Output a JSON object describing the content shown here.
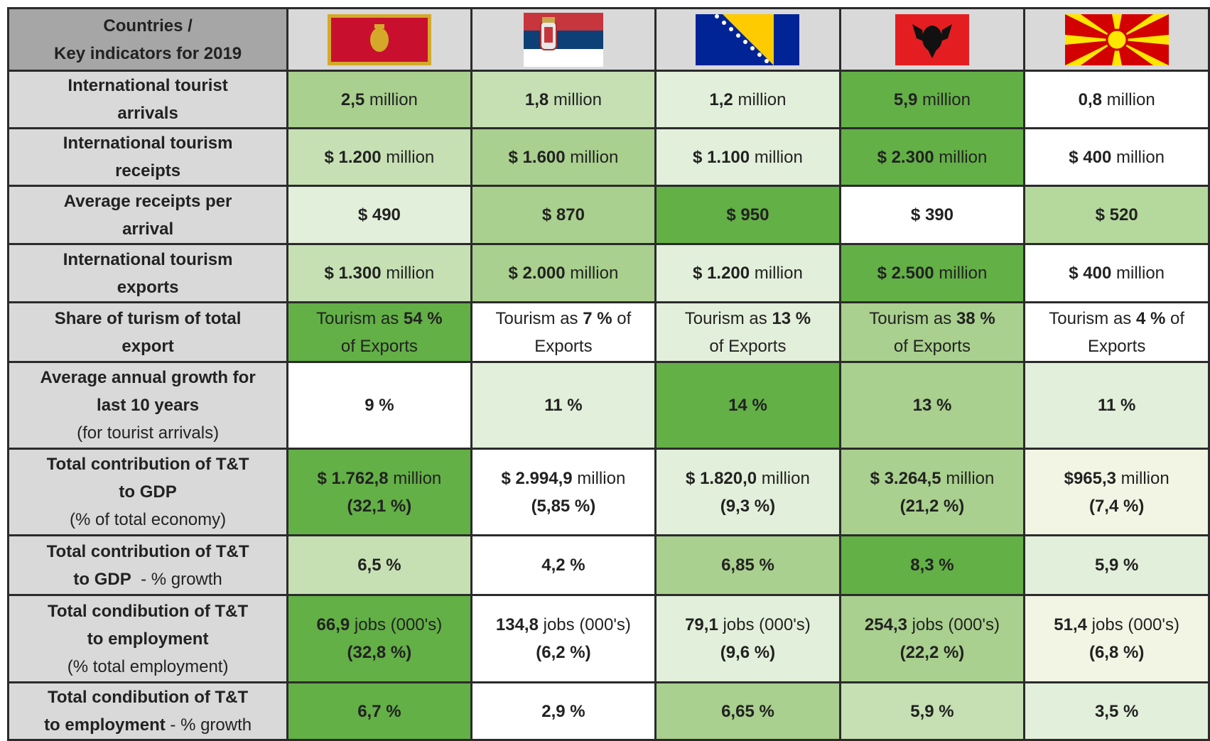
{
  "header": {
    "corner": [
      [
        {
          "text": "Countries /",
          "bold": true
        }
      ],
      [
        {
          "text": "Key indicators for 2019",
          "bold": true
        }
      ]
    ]
  },
  "rows": [
    {
      "label": [
        [
          {
            "text": "International tourist",
            "bold": true
          }
        ],
        [
          {
            "text": "arrivals",
            "bold": true
          }
        ]
      ],
      "cells": [
        {
          "fill": "#a9d08e",
          "lines": [
            [
              {
                "text": "2,5",
                "bold": true
              },
              {
                "text": " million",
                "bold": false
              }
            ]
          ]
        },
        {
          "fill": "#c6e0b4",
          "lines": [
            [
              {
                "text": "1,8",
                "bold": true
              },
              {
                "text": " million",
                "bold": false
              }
            ]
          ]
        },
        {
          "fill": "#e2efda",
          "lines": [
            [
              {
                "text": "1,2",
                "bold": true
              },
              {
                "text": " million",
                "bold": false
              }
            ]
          ]
        },
        {
          "fill": "#63b046",
          "lines": [
            [
              {
                "text": "5,9",
                "bold": true
              },
              {
                "text": " million",
                "bold": false
              }
            ]
          ]
        },
        {
          "fill": "#ffffff",
          "lines": [
            [
              {
                "text": "0,8",
                "bold": true
              },
              {
                "text": " million",
                "bold": false
              }
            ]
          ]
        }
      ]
    },
    {
      "label": [
        [
          {
            "text": "International tourism",
            "bold": true
          }
        ],
        [
          {
            "text": "receipts",
            "bold": true
          }
        ]
      ],
      "cells": [
        {
          "fill": "#c6e0b4",
          "lines": [
            [
              {
                "text": "$ 1.200",
                "bold": true
              },
              {
                "text": " million",
                "bold": false
              }
            ]
          ]
        },
        {
          "fill": "#a9d08e",
          "lines": [
            [
              {
                "text": "$ 1.600",
                "bold": true
              },
              {
                "text": " million",
                "bold": false
              }
            ]
          ]
        },
        {
          "fill": "#e2efda",
          "lines": [
            [
              {
                "text": "$ 1.100",
                "bold": true
              },
              {
                "text": " million",
                "bold": false
              }
            ]
          ]
        },
        {
          "fill": "#63b046",
          "lines": [
            [
              {
                "text": "$ 2.300",
                "bold": true
              },
              {
                "text": " million",
                "bold": false
              }
            ]
          ]
        },
        {
          "fill": "#ffffff",
          "lines": [
            [
              {
                "text": "$ 400",
                "bold": true
              },
              {
                "text": " million",
                "bold": false
              }
            ]
          ]
        }
      ]
    },
    {
      "label": [
        [
          {
            "text": "Average receipts per",
            "bold": true
          }
        ],
        [
          {
            "text": "arrival",
            "bold": true
          }
        ]
      ],
      "cells": [
        {
          "fill": "#e2efda",
          "lines": [
            [
              {
                "text": "$ 490",
                "bold": true
              }
            ]
          ]
        },
        {
          "fill": "#a9d08e",
          "lines": [
            [
              {
                "text": "$ 870",
                "bold": true
              }
            ]
          ]
        },
        {
          "fill": "#63b046",
          "lines": [
            [
              {
                "text": "$ 950",
                "bold": true
              }
            ]
          ]
        },
        {
          "fill": "#ffffff",
          "lines": [
            [
              {
                "text": "$ 390",
                "bold": true
              }
            ]
          ]
        },
        {
          "fill": "#b5d99c",
          "lines": [
            [
              {
                "text": "$ 520",
                "bold": true
              }
            ]
          ]
        }
      ]
    },
    {
      "label": [
        [
          {
            "text": "International tourism",
            "bold": true
          }
        ],
        [
          {
            "text": "exports",
            "bold": true
          }
        ]
      ],
      "cells": [
        {
          "fill": "#c6e0b4",
          "lines": [
            [
              {
                "text": "$ 1.300",
                "bold": true
              },
              {
                "text": " million",
                "bold": false
              }
            ]
          ]
        },
        {
          "fill": "#a9d08e",
          "lines": [
            [
              {
                "text": "$ 2.000",
                "bold": true
              },
              {
                "text": " million",
                "bold": false
              }
            ]
          ]
        },
        {
          "fill": "#e2efda",
          "lines": [
            [
              {
                "text": "$ 1.200",
                "bold": true
              },
              {
                "text": " million",
                "bold": false
              }
            ]
          ]
        },
        {
          "fill": "#63b046",
          "lines": [
            [
              {
                "text": "$ 2.500",
                "bold": true
              },
              {
                "text": " million",
                "bold": false
              }
            ]
          ]
        },
        {
          "fill": "#ffffff",
          "lines": [
            [
              {
                "text": "$ 400",
                "bold": true
              },
              {
                "text": " million",
                "bold": false
              }
            ]
          ]
        }
      ]
    },
    {
      "label": [
        [
          {
            "text": "Share of turism of total",
            "bold": true
          }
        ],
        [
          {
            "text": "export",
            "bold": true
          }
        ]
      ],
      "cells": [
        {
          "fill": "#63b046",
          "lines": [
            [
              {
                "text": "Tourism as ",
                "bold": false
              },
              {
                "text": "54 %",
                "bold": true
              }
            ],
            [
              {
                "text": "of Exports",
                "bold": false
              }
            ]
          ]
        },
        {
          "fill": "#ffffff",
          "lines": [
            [
              {
                "text": "Tourism as ",
                "bold": false
              },
              {
                "text": "7 %",
                "bold": true
              },
              {
                "text": " of",
                "bold": false
              }
            ],
            [
              {
                "text": "Exports",
                "bold": false
              }
            ]
          ]
        },
        {
          "fill": "#e2efda",
          "lines": [
            [
              {
                "text": "Tourism as ",
                "bold": false
              },
              {
                "text": "13 %",
                "bold": true
              }
            ],
            [
              {
                "text": "of Exports",
                "bold": false
              }
            ]
          ]
        },
        {
          "fill": "#a9d08e",
          "lines": [
            [
              {
                "text": "Tourism as ",
                "bold": false
              },
              {
                "text": "38 %",
                "bold": true
              }
            ],
            [
              {
                "text": "of Exports",
                "bold": false
              }
            ]
          ]
        },
        {
          "fill": "#ffffff",
          "lines": [
            [
              {
                "text": "Tourism as ",
                "bold": false
              },
              {
                "text": "4 %",
                "bold": true
              },
              {
                "text": " of",
                "bold": false
              }
            ],
            [
              {
                "text": "Exports",
                "bold": false
              }
            ]
          ]
        }
      ]
    },
    {
      "label": [
        [
          {
            "text": "Average annual growth for",
            "bold": true
          }
        ],
        [
          {
            "text": "last 10 years",
            "bold": true
          }
        ],
        [
          {
            "text": "(for tourist arrivals)",
            "bold": false
          }
        ]
      ],
      "cells": [
        {
          "fill": "#ffffff",
          "lines": [
            [
              {
                "text": "9 %",
                "bold": true
              }
            ]
          ]
        },
        {
          "fill": "#e2efda",
          "lines": [
            [
              {
                "text": "11 %",
                "bold": true
              }
            ]
          ]
        },
        {
          "fill": "#63b046",
          "lines": [
            [
              {
                "text": "14 %",
                "bold": true
              }
            ]
          ]
        },
        {
          "fill": "#a9d08e",
          "lines": [
            [
              {
                "text": "13 %",
                "bold": true
              }
            ]
          ]
        },
        {
          "fill": "#e2efda",
          "lines": [
            [
              {
                "text": "11 %",
                "bold": true
              }
            ]
          ]
        }
      ]
    },
    {
      "label": [
        [
          {
            "text": "Total contribution of T&T",
            "bold": true
          }
        ],
        [
          {
            "text": "to GDP",
            "bold": true
          }
        ],
        [
          {
            "text": "(% of total economy)",
            "bold": false
          }
        ]
      ],
      "cells": [
        {
          "fill": "#63b046",
          "lines": [
            [
              {
                "text": "$ 1.762,8",
                "bold": true
              },
              {
                "text": " million",
                "bold": false
              }
            ],
            [
              {
                "text": "(32,1 %)",
                "bold": true
              }
            ]
          ]
        },
        {
          "fill": "#ffffff",
          "lines": [
            [
              {
                "text": "$ 2.994,9",
                "bold": true
              },
              {
                "text": " million",
                "bold": false
              }
            ],
            [
              {
                "text": "(5,85 %)",
                "bold": true
              }
            ]
          ]
        },
        {
          "fill": "#e2efda",
          "lines": [
            [
              {
                "text": "$ 1.820,0",
                "bold": true
              },
              {
                "text": " million",
                "bold": false
              }
            ],
            [
              {
                "text": "(9,3 %)",
                "bold": true
              }
            ]
          ]
        },
        {
          "fill": "#a9d08e",
          "lines": [
            [
              {
                "text": "$ 3.264,5",
                "bold": true
              },
              {
                "text": " million",
                "bold": false
              }
            ],
            [
              {
                "text": "(21,2 %)",
                "bold": true
              }
            ]
          ]
        },
        {
          "fill": "#f2f5e4",
          "lines": [
            [
              {
                "text": "$965,3",
                "bold": true
              },
              {
                "text": " million",
                "bold": false
              }
            ],
            [
              {
                "text": "(7,4 %)",
                "bold": true
              }
            ]
          ]
        }
      ]
    },
    {
      "label": [
        [
          {
            "text": "Total contribution of T&T",
            "bold": true
          }
        ],
        [
          {
            "text": "to GDP",
            "bold": true
          },
          {
            "text": "  - % growth",
            "bold": false
          }
        ]
      ],
      "cells": [
        {
          "fill": "#c6e0b4",
          "lines": [
            [
              {
                "text": "6,5 %",
                "bold": true
              }
            ]
          ]
        },
        {
          "fill": "#ffffff",
          "lines": [
            [
              {
                "text": "4,2 %",
                "bold": true
              }
            ]
          ]
        },
        {
          "fill": "#a9d08e",
          "lines": [
            [
              {
                "text": "6,85 %",
                "bold": true
              }
            ]
          ]
        },
        {
          "fill": "#63b046",
          "lines": [
            [
              {
                "text": "8,3 %",
                "bold": true
              }
            ]
          ]
        },
        {
          "fill": "#e2efda",
          "lines": [
            [
              {
                "text": "5,9 %",
                "bold": true
              }
            ]
          ]
        }
      ]
    },
    {
      "label": [
        [
          {
            "text": "Total condibution of T&T",
            "bold": true
          }
        ],
        [
          {
            "text": "to employment",
            "bold": true
          }
        ],
        [
          {
            "text": "(% total employment)",
            "bold": false
          }
        ]
      ],
      "cells": [
        {
          "fill": "#63b046",
          "lines": [
            [
              {
                "text": "66,9",
                "bold": true
              },
              {
                "text": " jobs (000's)",
                "bold": false
              }
            ],
            [
              {
                "text": "(32,8 %)",
                "bold": true
              }
            ]
          ]
        },
        {
          "fill": "#ffffff",
          "lines": [
            [
              {
                "text": "134,8",
                "bold": true
              },
              {
                "text": " jobs (000's)",
                "bold": false
              }
            ],
            [
              {
                "text": "(6,2 %)",
                "bold": true
              }
            ]
          ]
        },
        {
          "fill": "#e2efda",
          "lines": [
            [
              {
                "text": "79,1",
                "bold": true
              },
              {
                "text": " jobs (000's)",
                "bold": false
              }
            ],
            [
              {
                "text": "(9,6 %)",
                "bold": true
              }
            ]
          ]
        },
        {
          "fill": "#a9d08e",
          "lines": [
            [
              {
                "text": "254,3",
                "bold": true
              },
              {
                "text": " jobs (000's)",
                "bold": false
              }
            ],
            [
              {
                "text": "(22,2 %)",
                "bold": true
              }
            ]
          ]
        },
        {
          "fill": "#f2f5e4",
          "lines": [
            [
              {
                "text": "51,4",
                "bold": true
              },
              {
                "text": " jobs (000's)",
                "bold": false
              }
            ],
            [
              {
                "text": "(6,8 %)",
                "bold": true
              }
            ]
          ]
        }
      ]
    },
    {
      "label": [
        [
          {
            "text": "Total condibution of T&T",
            "bold": true
          }
        ],
        [
          {
            "text": "to employment",
            "bold": true
          },
          {
            "text": " - % growth",
            "bold": false
          }
        ]
      ],
      "cells": [
        {
          "fill": "#63b046",
          "lines": [
            [
              {
                "text": "6,7 %",
                "bold": true
              }
            ]
          ]
        },
        {
          "fill": "#ffffff",
          "lines": [
            [
              {
                "text": "2,9 %",
                "bold": true
              }
            ]
          ]
        },
        {
          "fill": "#a9d08e",
          "lines": [
            [
              {
                "text": "6,65 %",
                "bold": true
              }
            ]
          ]
        },
        {
          "fill": "#c6e0b4",
          "lines": [
            [
              {
                "text": "5,9 %",
                "bold": true
              }
            ]
          ]
        },
        {
          "fill": "#e2efda",
          "lines": [
            [
              {
                "text": "3,5 %",
                "bold": true
              }
            ]
          ]
        }
      ]
    }
  ]
}
